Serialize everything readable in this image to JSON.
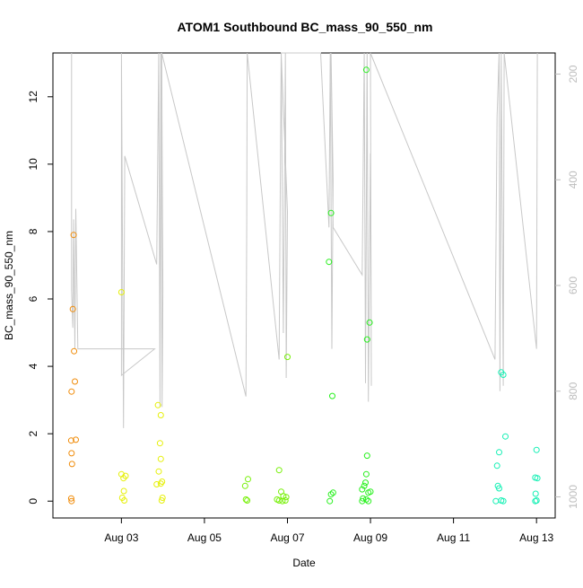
{
  "chart_data": {
    "type": "scatter",
    "title": "ATOM1 Southbound BC_mass_90_550_nm",
    "xlabel": "Date",
    "ylabel": "BC_mass_90_550_nm",
    "x_ticks": [
      {
        "label": "Aug 03",
        "day": 3
      },
      {
        "label": "Aug 05",
        "day": 5
      },
      {
        "label": "Aug 07",
        "day": 7
      },
      {
        "label": "Aug 09",
        "day": 9
      },
      {
        "label": "Aug 11",
        "day": 11
      },
      {
        "label": "Aug 13",
        "day": 13
      }
    ],
    "xlim_days": [
      1.35,
      13.45
    ],
    "ylim": [
      -0.5,
      13.3
    ],
    "y_ticks": [
      0,
      2,
      4,
      6,
      8,
      10,
      12
    ],
    "right_axis": {
      "label": "",
      "ticks": [
        200,
        400,
        600,
        800,
        1000
      ],
      "lim": [
        160,
        1040
      ],
      "inverted": true,
      "color": "#bdbdbd"
    },
    "colors": {
      "line": "#c8c8c8",
      "axis": "#000000"
    },
    "series": [
      {
        "color": "#f08c0a",
        "points": [
          [
            1.85,
            7.9
          ],
          [
            1.83,
            5.7
          ],
          [
            1.86,
            4.45
          ],
          [
            1.88,
            3.55
          ],
          [
            1.8,
            3.25
          ],
          [
            1.79,
            1.8
          ],
          [
            1.9,
            1.82
          ],
          [
            1.8,
            1.42
          ],
          [
            1.81,
            1.1
          ],
          [
            1.79,
            0.08
          ],
          [
            1.8,
            0.0
          ]
        ]
      },
      {
        "color": "#e6f00a",
        "points": [
          [
            3.0,
            6.2
          ],
          [
            3.0,
            0.8
          ],
          [
            3.1,
            0.75
          ],
          [
            3.05,
            0.68
          ],
          [
            3.06,
            0.3
          ],
          [
            3.02,
            0.1
          ],
          [
            3.07,
            0.02
          ],
          [
            3.88,
            2.85
          ],
          [
            3.95,
            2.55
          ],
          [
            3.93,
            1.72
          ],
          [
            3.95,
            1.25
          ],
          [
            3.9,
            0.88
          ],
          [
            3.85,
            0.5
          ],
          [
            3.98,
            0.58
          ],
          [
            3.95,
            0.52
          ],
          [
            3.99,
            0.1
          ],
          [
            3.97,
            0.02
          ]
        ]
      },
      {
        "color": "#78f00a",
        "points": [
          [
            6.05,
            0.65
          ],
          [
            5.98,
            0.45
          ],
          [
            6.0,
            0.05
          ],
          [
            6.03,
            0.02
          ],
          [
            6.8,
            0.92
          ],
          [
            6.85,
            0.28
          ],
          [
            6.9,
            0.15
          ],
          [
            6.75,
            0.05
          ],
          [
            6.8,
            0.02
          ],
          [
            6.88,
            0.0
          ],
          [
            6.95,
            0.02
          ],
          [
            6.97,
            0.12
          ],
          [
            7.0,
            4.28
          ]
        ]
      },
      {
        "color": "#28f01e",
        "points": [
          [
            8.05,
            8.55
          ],
          [
            8.0,
            7.1
          ],
          [
            8.08,
            3.12
          ],
          [
            8.05,
            0.2
          ],
          [
            8.1,
            0.25
          ],
          [
            8.02,
            0.0
          ],
          [
            8.9,
            12.8
          ],
          [
            8.98,
            5.3
          ],
          [
            8.92,
            4.8
          ],
          [
            8.92,
            1.35
          ],
          [
            8.9,
            0.8
          ],
          [
            8.88,
            0.55
          ],
          [
            8.85,
            0.45
          ],
          [
            8.8,
            0.35
          ],
          [
            8.95,
            0.25
          ],
          [
            9.0,
            0.28
          ],
          [
            8.82,
            0.08
          ],
          [
            8.9,
            0.05
          ],
          [
            8.95,
            0.0
          ],
          [
            8.8,
            0.0
          ]
        ]
      },
      {
        "color": "#14f0b4",
        "points": [
          [
            12.15,
            3.82
          ],
          [
            12.2,
            3.75
          ],
          [
            12.25,
            1.92
          ],
          [
            12.1,
            1.45
          ],
          [
            12.05,
            1.05
          ],
          [
            12.07,
            0.45
          ],
          [
            12.1,
            0.38
          ],
          [
            12.02,
            0.0
          ],
          [
            12.15,
            0.02
          ],
          [
            12.2,
            0.0
          ],
          [
            13.0,
            1.52
          ],
          [
            12.97,
            0.7
          ],
          [
            13.02,
            0.68
          ],
          [
            12.98,
            0.22
          ],
          [
            13.0,
            0.02
          ],
          [
            12.97,
            0.0
          ]
        ]
      }
    ],
    "pressure_line": [
      [
        1.8,
        160
      ],
      [
        1.8,
        610
      ],
      [
        1.83,
        680
      ],
      [
        1.85,
        475
      ],
      [
        1.88,
        720
      ],
      [
        1.9,
        455
      ],
      [
        1.95,
        720
      ],
      [
        3.8,
        720
      ],
      [
        3.0,
        770
      ],
      [
        3.0,
        160
      ],
      [
        3.05,
        870
      ],
      [
        3.08,
        355
      ],
      [
        3.85,
        560
      ],
      [
        3.9,
        160
      ],
      [
        3.93,
        830
      ],
      [
        3.95,
        160
      ],
      [
        3.98,
        830
      ],
      [
        4.0,
        610
      ],
      [
        3.97,
        160
      ],
      [
        6.0,
        810
      ],
      [
        6.02,
        480
      ],
      [
        6.03,
        160
      ],
      [
        6.8,
        740
      ],
      [
        6.85,
        160
      ],
      [
        6.9,
        690
      ],
      [
        6.95,
        160
      ],
      [
        6.97,
        775
      ],
      [
        7.0,
        460
      ],
      [
        6.85,
        160
      ],
      [
        7.8,
        160
      ],
      [
        8.0,
        490
      ],
      [
        8.03,
        160
      ],
      [
        8.07,
        720
      ],
      [
        8.1,
        400
      ],
      [
        8.05,
        160
      ],
      [
        8.1,
        490
      ],
      [
        8.8,
        580
      ],
      [
        8.85,
        160
      ],
      [
        8.88,
        785
      ],
      [
        8.92,
        160
      ],
      [
        8.95,
        820
      ],
      [
        9.0,
        350
      ],
      [
        9.02,
        790
      ],
      [
        9.0,
        160
      ],
      [
        12.0,
        740
      ],
      [
        12.05,
        280
      ],
      [
        12.1,
        160
      ],
      [
        12.12,
        800
      ],
      [
        12.15,
        160
      ],
      [
        12.2,
        790
      ],
      [
        12.22,
        160
      ],
      [
        13.0,
        720
      ],
      [
        13.02,
        160
      ]
    ]
  }
}
